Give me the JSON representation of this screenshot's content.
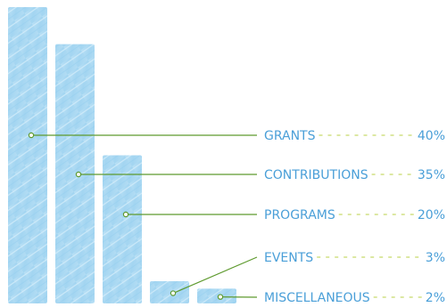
{
  "chart_data": {
    "type": "bar",
    "categories": [
      "GRANTS",
      "CONTRIBUTIONS",
      "PROGRAMS",
      "EVENTS",
      "MISCELLANEOUS"
    ],
    "values": [
      40,
      35,
      20,
      3,
      2
    ],
    "value_labels": [
      "40%",
      "35%",
      "20%",
      "3%",
      "2%"
    ],
    "unit": "%",
    "ylim": [
      0,
      40
    ],
    "grid": false,
    "legend": "none",
    "colors": {
      "bar": "#a9d8f2",
      "bar_texture": "#cfeaf8",
      "label": "#4a9fd8",
      "leader": "#5e9a2e",
      "dash": "#c8d96a"
    }
  }
}
